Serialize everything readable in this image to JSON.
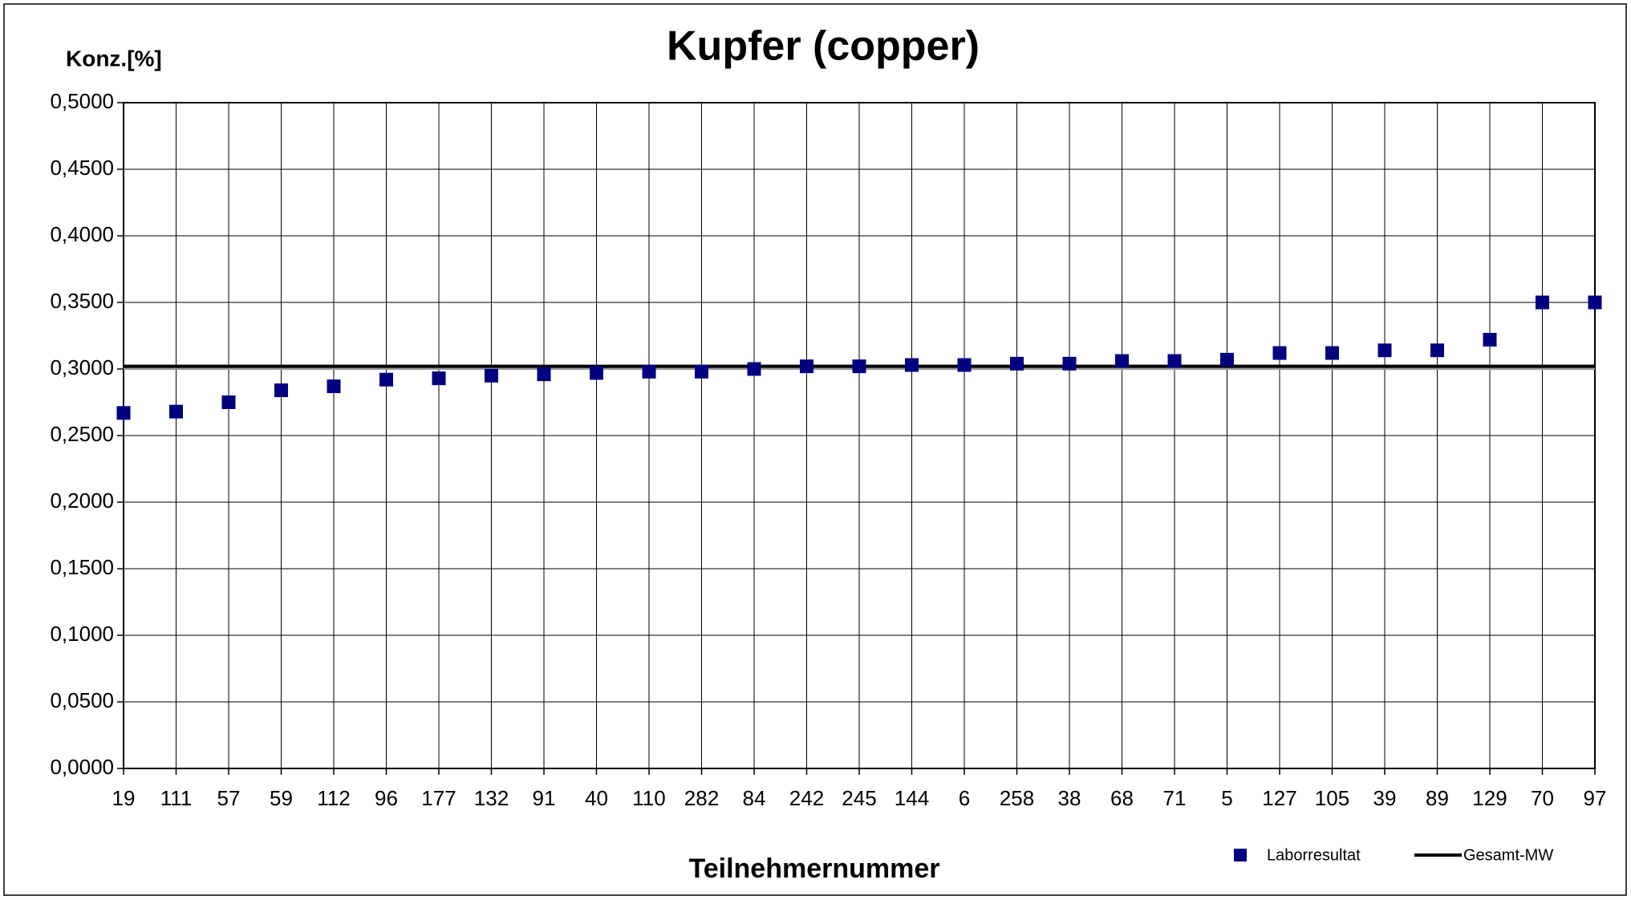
{
  "chart_data": {
    "type": "scatter",
    "title": "Kupfer (copper)",
    "y_label": "Konz.[%]",
    "x_label": "Teilnehmernummer",
    "categories": [
      "19",
      "111",
      "57",
      "59",
      "112",
      "96",
      "177",
      "132",
      "91",
      "40",
      "110",
      "282",
      "84",
      "242",
      "245",
      "144",
      "6",
      "258",
      "38",
      "68",
      "71",
      "5",
      "127",
      "105",
      "39",
      "89",
      "129",
      "70",
      "97"
    ],
    "series": [
      {
        "name": "Laborresultat",
        "color": "#000080",
        "values": [
          0.267,
          0.268,
          0.275,
          0.284,
          0.287,
          0.292,
          0.293,
          0.295,
          0.296,
          0.297,
          0.298,
          0.298,
          0.3,
          0.302,
          0.302,
          0.303,
          0.303,
          0.304,
          0.304,
          0.306,
          0.306,
          0.307,
          0.312,
          0.312,
          0.314,
          0.314,
          0.322,
          0.35,
          0.35
        ]
      },
      {
        "name": "Gesamt-MW",
        "color": "#000000",
        "value": 0.302
      }
    ],
    "ylim": [
      0,
      0.5
    ],
    "yticks": [
      {
        "value": 0,
        "label": "0,0000"
      },
      {
        "value": 0.05,
        "label": "0,0500"
      },
      {
        "value": 0.1,
        "label": "0,1000"
      },
      {
        "value": 0.15,
        "label": "0,1500"
      },
      {
        "value": 0.2,
        "label": "0,2000"
      },
      {
        "value": 0.25,
        "label": "0,2500"
      },
      {
        "value": 0.3,
        "label": "0,3000"
      },
      {
        "value": 0.35,
        "label": "0,3500"
      },
      {
        "value": 0.4,
        "label": "0,4000"
      },
      {
        "value": 0.45,
        "label": "0,4500"
      },
      {
        "value": 0.5,
        "label": "0,5000"
      }
    ],
    "grid": true
  }
}
